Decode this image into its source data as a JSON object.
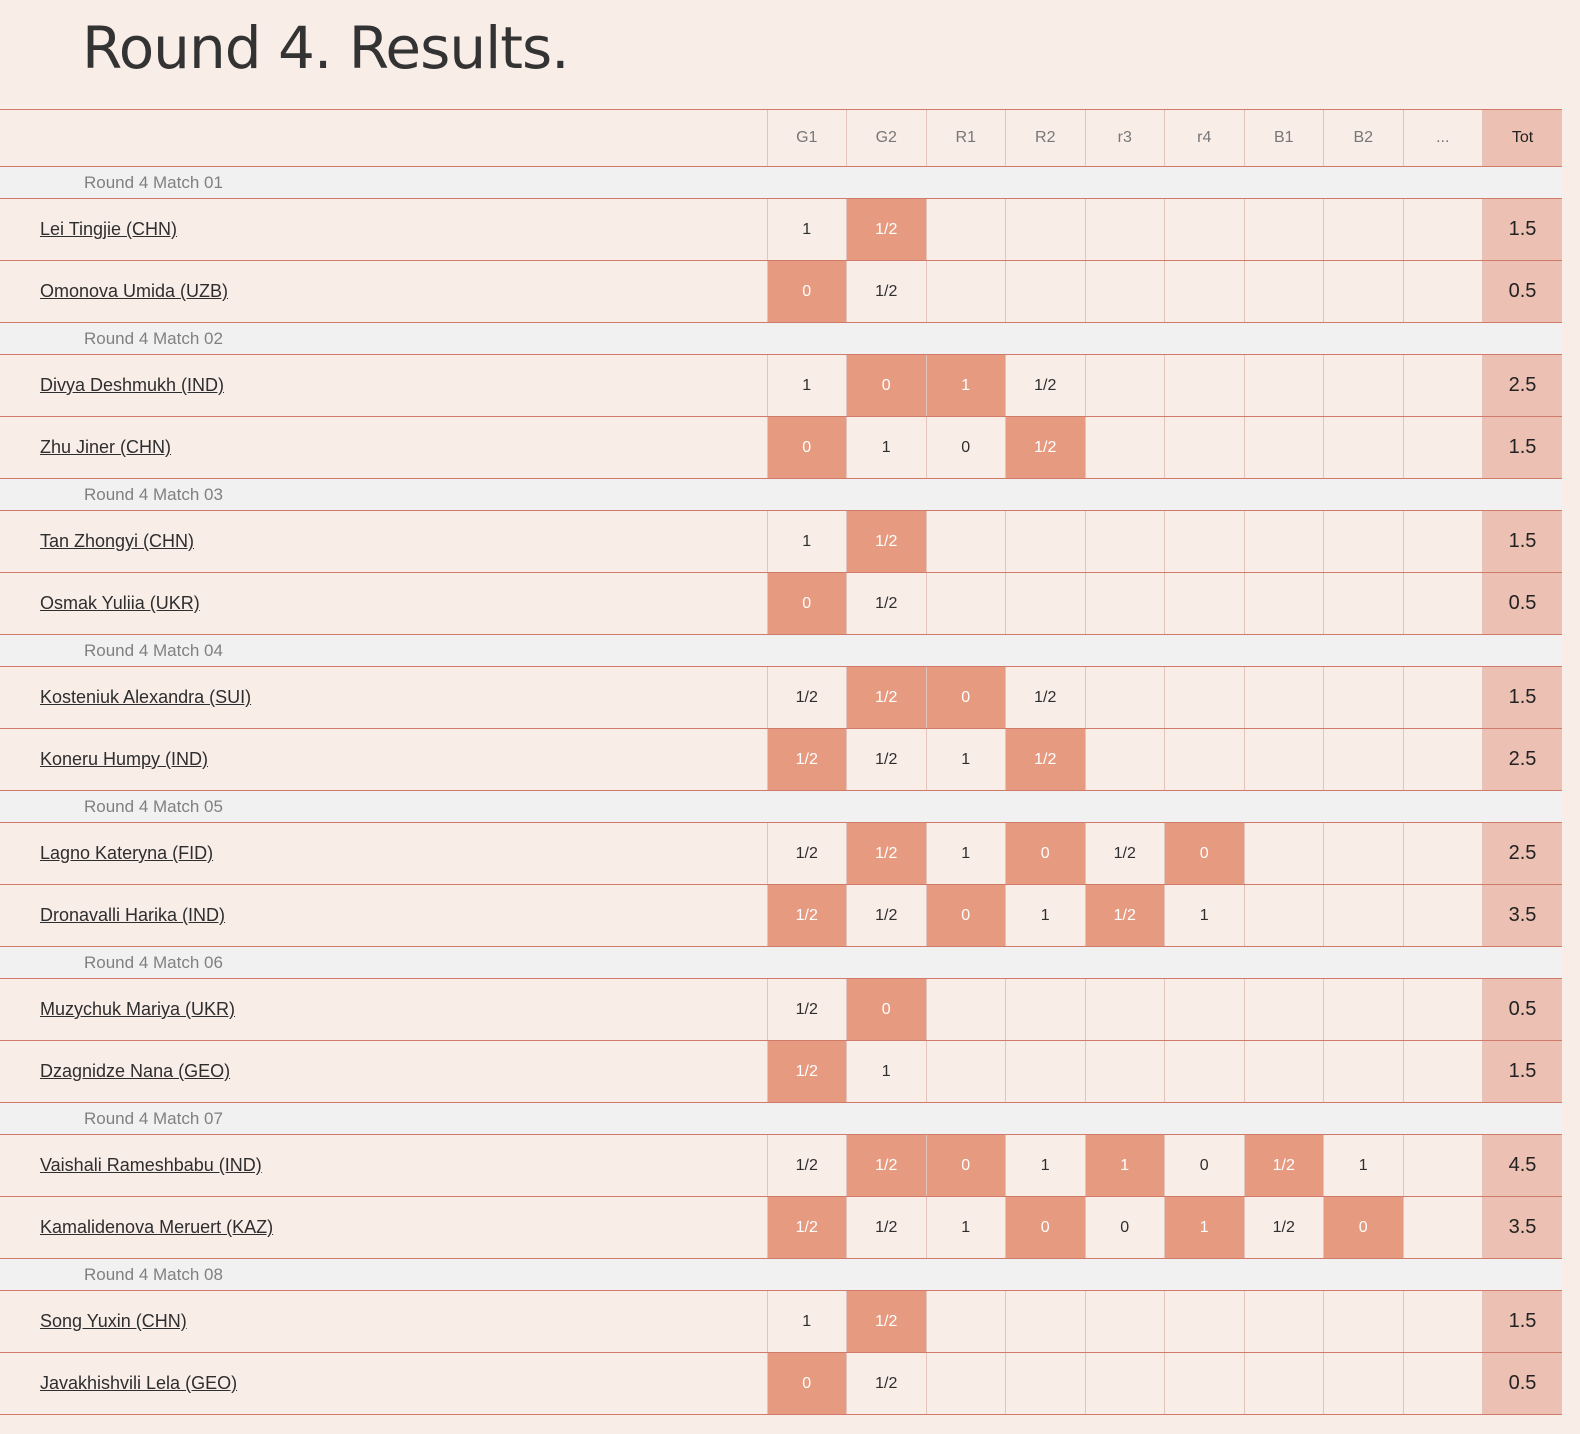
{
  "title": "Round 4. Results.",
  "columns": [
    "G1",
    "G2",
    "R1",
    "R2",
    "r3",
    "r4",
    "B1",
    "B2",
    "...",
    "Tot"
  ],
  "matches": [
    {
      "label": "Round 4 Match 01",
      "players": [
        {
          "name": "Lei Tingjie (CHN)",
          "scores": [
            "1",
            "1/2",
            "",
            "",
            "",
            "",
            "",
            "",
            ""
          ],
          "total": "1.5"
        },
        {
          "name": "Omonova Umida (UZB)",
          "scores": [
            "0",
            "1/2",
            "",
            "",
            "",
            "",
            "",
            "",
            ""
          ],
          "total": "0.5"
        }
      ]
    },
    {
      "label": "Round 4 Match 02",
      "players": [
        {
          "name": "Divya Deshmukh (IND)",
          "scores": [
            "1",
            "0",
            "1",
            "1/2",
            "",
            "",
            "",
            "",
            ""
          ],
          "total": "2.5"
        },
        {
          "name": "Zhu Jiner (CHN)",
          "scores": [
            "0",
            "1",
            "0",
            "1/2",
            "",
            "",
            "",
            "",
            ""
          ],
          "total": "1.5"
        }
      ]
    },
    {
      "label": "Round 4 Match 03",
      "players": [
        {
          "name": "Tan Zhongyi (CHN)",
          "scores": [
            "1",
            "1/2",
            "",
            "",
            "",
            "",
            "",
            "",
            ""
          ],
          "total": "1.5"
        },
        {
          "name": "Osmak Yuliia (UKR)",
          "scores": [
            "0",
            "1/2",
            "",
            "",
            "",
            "",
            "",
            "",
            ""
          ],
          "total": "0.5"
        }
      ]
    },
    {
      "label": "Round 4 Match 04",
      "players": [
        {
          "name": "Kosteniuk Alexandra (SUI)",
          "scores": [
            "1/2",
            "1/2",
            "0",
            "1/2",
            "",
            "",
            "",
            "",
            ""
          ],
          "total": "1.5"
        },
        {
          "name": "Koneru Humpy (IND)",
          "scores": [
            "1/2",
            "1/2",
            "1",
            "1/2",
            "",
            "",
            "",
            "",
            ""
          ],
          "total": "2.5"
        }
      ]
    },
    {
      "label": "Round 4 Match 05",
      "players": [
        {
          "name": "Lagno Kateryna (FID)",
          "scores": [
            "1/2",
            "1/2",
            "1",
            "0",
            "1/2",
            "0",
            "",
            "",
            ""
          ],
          "total": "2.5"
        },
        {
          "name": "Dronavalli Harika (IND)",
          "scores": [
            "1/2",
            "1/2",
            "0",
            "1",
            "1/2",
            "1",
            "",
            "",
            ""
          ],
          "total": "3.5"
        }
      ]
    },
    {
      "label": "Round 4 Match 06",
      "players": [
        {
          "name": "Muzychuk Mariya (UKR)",
          "scores": [
            "1/2",
            "0",
            "",
            "",
            "",
            "",
            "",
            "",
            ""
          ],
          "total": "0.5"
        },
        {
          "name": "Dzagnidze Nana (GEO)",
          "scores": [
            "1/2",
            "1",
            "",
            "",
            "",
            "",
            "",
            "",
            ""
          ],
          "total": "1.5"
        }
      ]
    },
    {
      "label": "Round 4 Match 07",
      "players": [
        {
          "name": "Vaishali Rameshbabu (IND)",
          "scores": [
            "1/2",
            "1/2",
            "0",
            "1",
            "1",
            "0",
            "1/2",
            "1",
            ""
          ],
          "total": "4.5"
        },
        {
          "name": "Kamalidenova Meruert (KAZ)",
          "scores": [
            "1/2",
            "1/2",
            "1",
            "0",
            "0",
            "1",
            "1/2",
            "0",
            ""
          ],
          "total": "3.5"
        }
      ]
    },
    {
      "label": "Round 4 Match 08",
      "players": [
        {
          "name": "Song Yuxin (CHN)",
          "scores": [
            "1",
            "1/2",
            "",
            "",
            "",
            "",
            "",
            "",
            ""
          ],
          "total": "1.5"
        },
        {
          "name": "Javakhishvili Lela (GEO)",
          "scores": [
            "0",
            "1/2",
            "",
            "",
            "",
            "",
            "",
            "",
            ""
          ],
          "total": "0.5"
        }
      ]
    }
  ]
}
